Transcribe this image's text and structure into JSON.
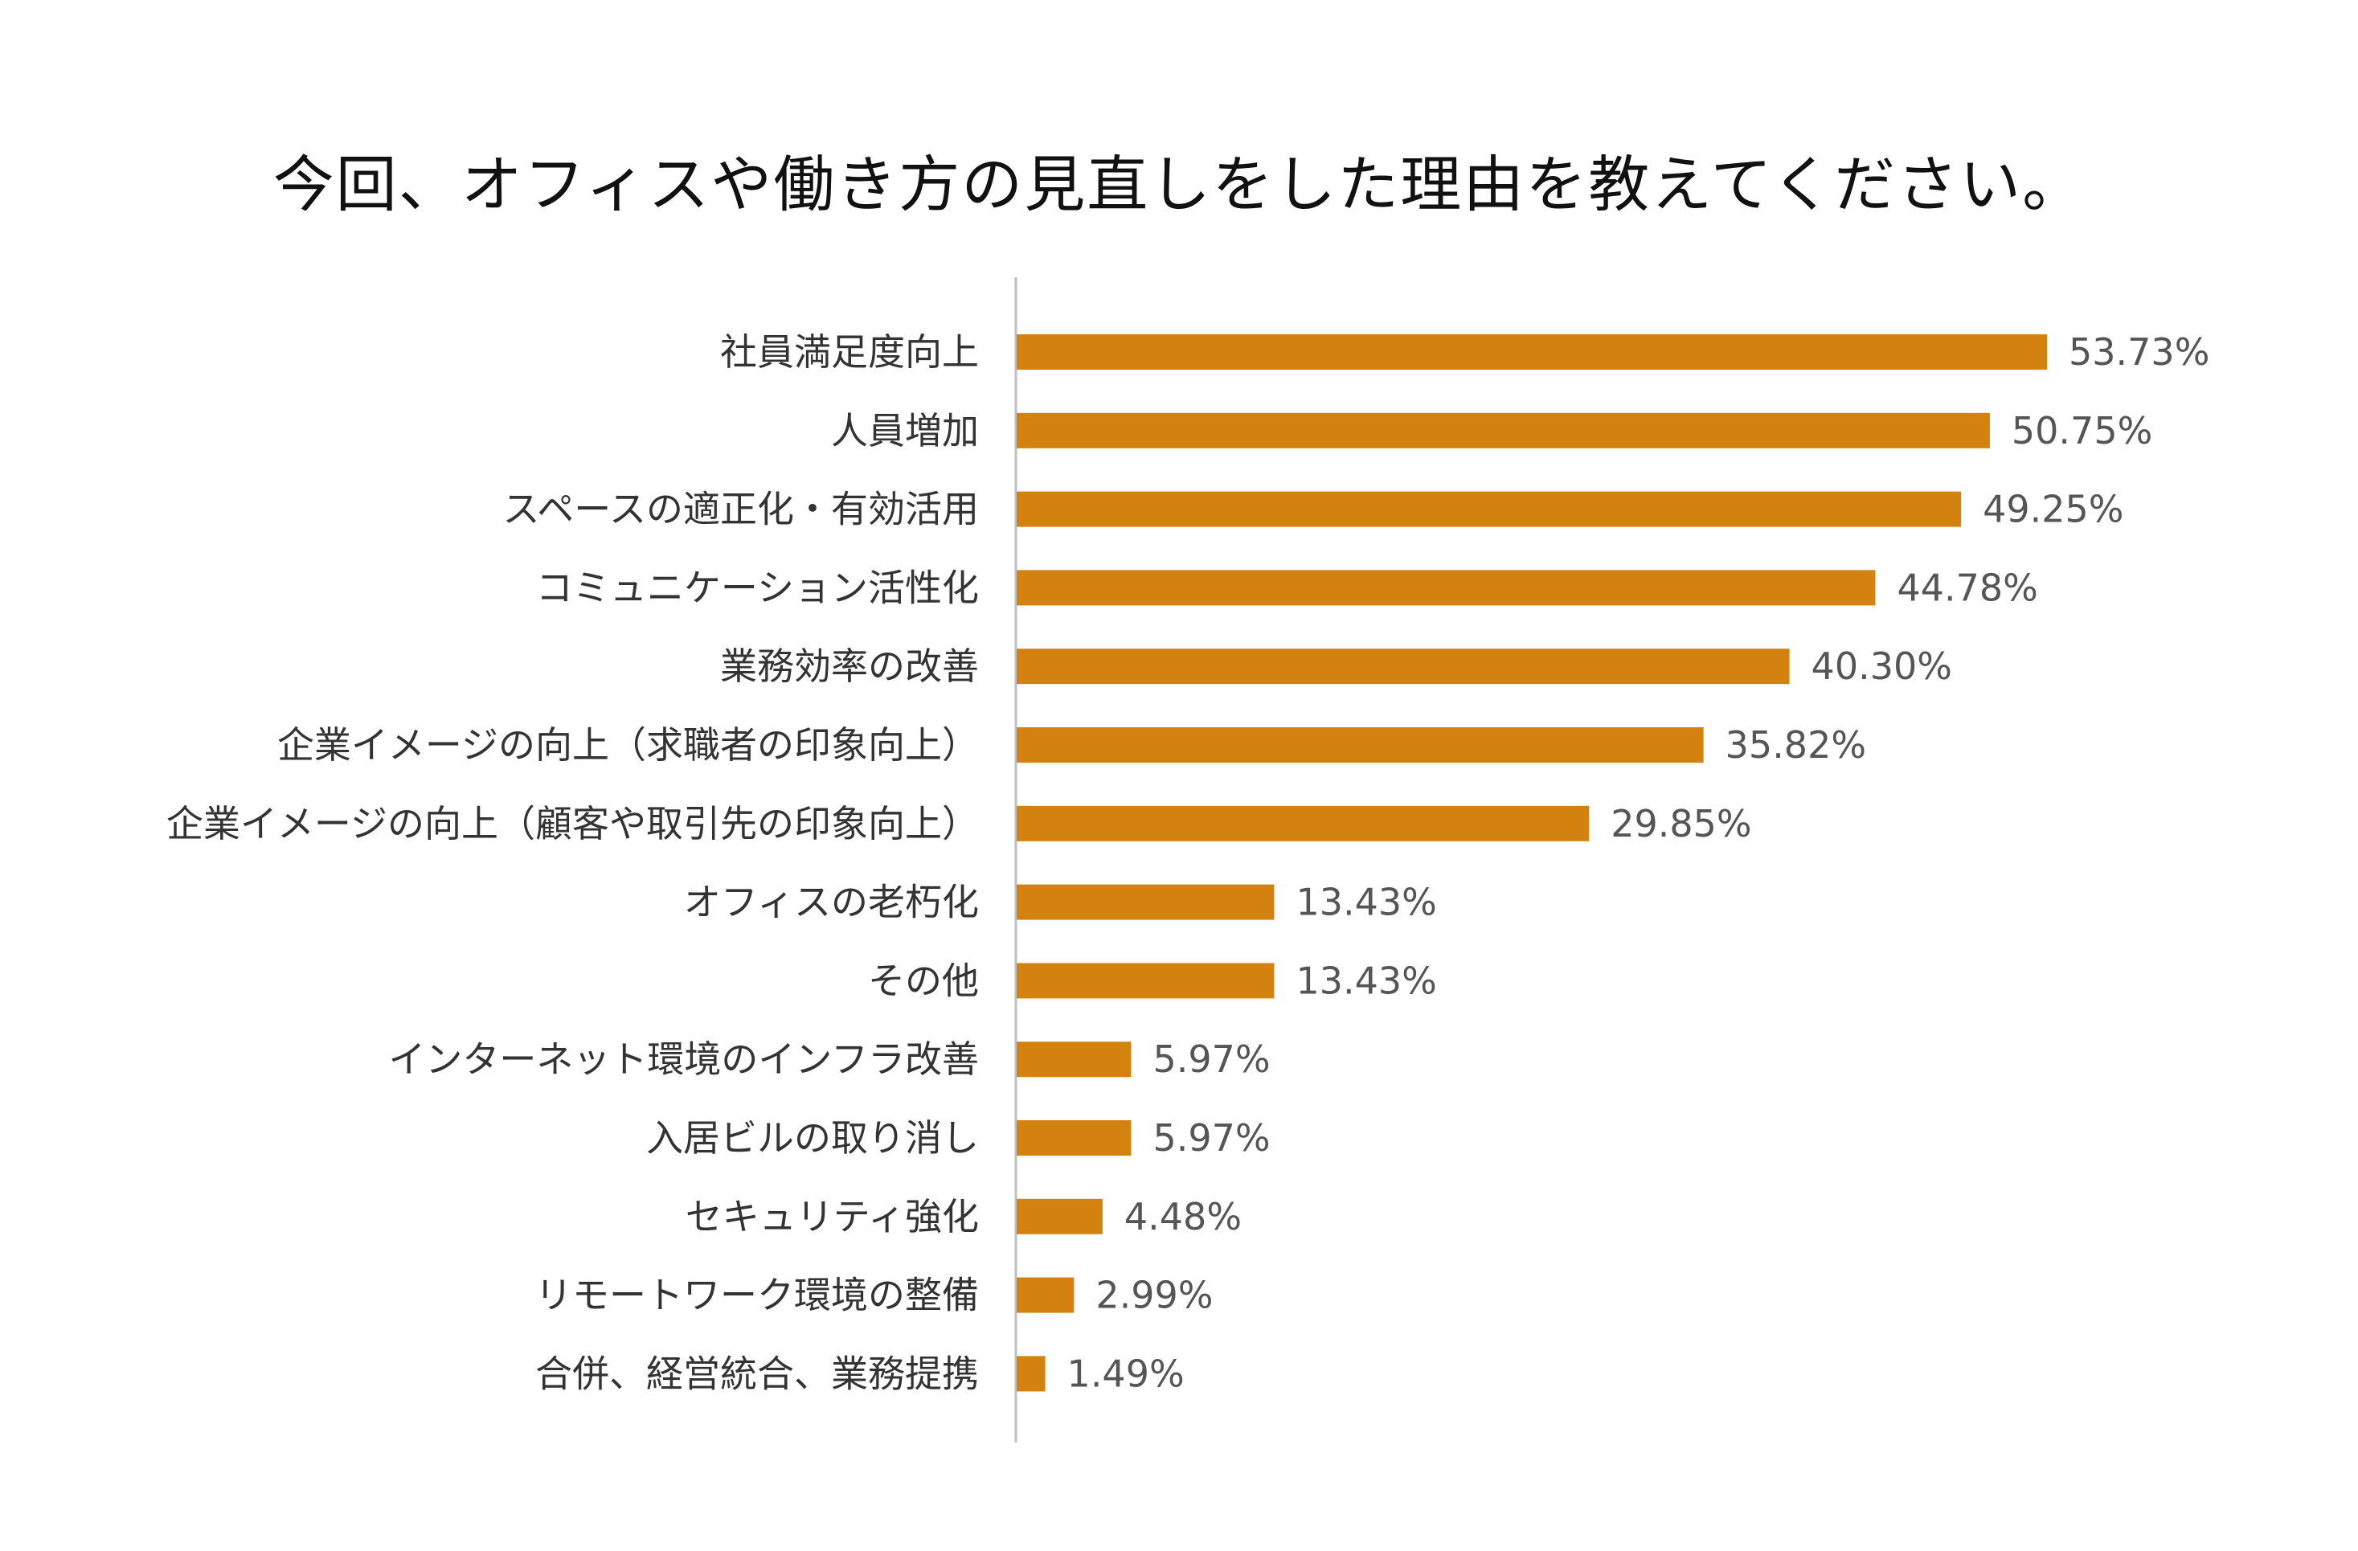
{
  "chart_data": {
    "type": "bar",
    "orientation": "horizontal",
    "title": "今回、オフィスや働き方の見直しをした理由を教えてください。",
    "categories": [
      "社員満足度向上",
      "人員増加",
      "スペースの適正化・有効活用",
      "コミュニケーション活性化",
      "業務効率の改善",
      "企業イメージの向上（求職者の印象向上）",
      "企業イメージの向上（顧客や取引先の印象向上）",
      "オフィスの老朽化",
      "その他",
      "インターネット環境のインフラ改善",
      "入居ビルの取り消し",
      "セキュリティ強化",
      "リモートワーク環境の整備",
      "合併、経営統合、業務提携"
    ],
    "values": [
      53.73,
      50.75,
      49.25,
      44.78,
      40.3,
      35.82,
      29.85,
      13.43,
      13.43,
      5.97,
      5.97,
      4.48,
      2.99,
      1.49
    ],
    "value_labels": [
      "53.73%",
      "50.75%",
      "49.25%",
      "44.78%",
      "40.30%",
      "35.82%",
      "29.85%",
      "13.43%",
      "13.43%",
      "5.97%",
      "5.97%",
      "4.48%",
      "2.99%",
      "1.49%"
    ],
    "bar_color": "#D4820F",
    "axis_color": "#BFBFBF",
    "xlim": [
      0,
      60
    ],
    "grid": false,
    "legend": false,
    "xlabel": "",
    "ylabel": ""
  }
}
